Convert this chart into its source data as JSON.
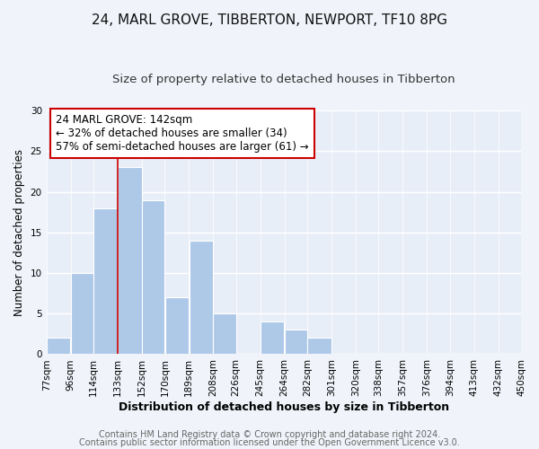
{
  "title1": "24, MARL GROVE, TIBBERTON, NEWPORT, TF10 8PG",
  "title2": "Size of property relative to detached houses in Tibberton",
  "xlabel": "Distribution of detached houses by size in Tibberton",
  "ylabel": "Number of detached properties",
  "bar_left_edges": [
    77,
    96,
    114,
    133,
    152,
    170,
    189,
    208,
    226,
    245,
    264,
    282,
    301,
    320,
    338,
    357,
    376,
    394,
    413,
    432
  ],
  "bar_widths": [
    19,
    18,
    19,
    19,
    18,
    19,
    19,
    18,
    19,
    19,
    18,
    19,
    19,
    18,
    19,
    19,
    18,
    19,
    19,
    18
  ],
  "bar_heights": [
    2,
    10,
    18,
    23,
    19,
    7,
    14,
    5,
    0,
    4,
    3,
    2,
    0,
    0,
    0,
    0,
    0,
    0,
    0,
    0
  ],
  "bar_color": "#aec9e8",
  "bar_edgecolor": "#ffffff",
  "bar_linewidth": 0.8,
  "marker_x": 133,
  "marker_color": "#cc0000",
  "ylim": [
    0,
    30
  ],
  "yticks": [
    0,
    5,
    10,
    15,
    20,
    25,
    30
  ],
  "xtick_labels": [
    "77sqm",
    "96sqm",
    "114sqm",
    "133sqm",
    "152sqm",
    "170sqm",
    "189sqm",
    "208sqm",
    "226sqm",
    "245sqm",
    "264sqm",
    "282sqm",
    "301sqm",
    "320sqm",
    "338sqm",
    "357sqm",
    "376sqm",
    "394sqm",
    "413sqm",
    "432sqm",
    "450sqm"
  ],
  "xtick_positions": [
    77,
    96,
    114,
    133,
    152,
    170,
    189,
    208,
    226,
    245,
    264,
    282,
    301,
    320,
    338,
    357,
    376,
    394,
    413,
    432,
    450
  ],
  "annotation_text": "24 MARL GROVE: 142sqm\n← 32% of detached houses are smaller (34)\n57% of semi-detached houses are larger (61) →",
  "footer1": "Contains HM Land Registry data © Crown copyright and database right 2024.",
  "footer2": "Contains public sector information licensed under the Open Government Licence v3.0.",
  "background_color": "#f0f4fa",
  "plot_bg_color": "#e8eef8",
  "grid_color": "#ffffff",
  "title1_fontsize": 11,
  "title2_fontsize": 9.5,
  "xlabel_fontsize": 9,
  "ylabel_fontsize": 8.5,
  "tick_fontsize": 7.5,
  "annotation_fontsize": 8.5,
  "footer_fontsize": 7
}
